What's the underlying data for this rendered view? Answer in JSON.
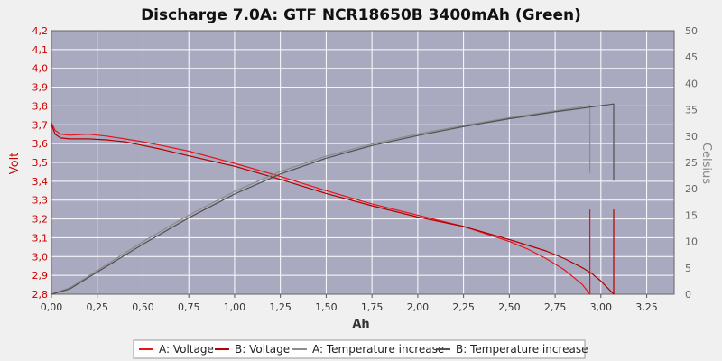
{
  "chart_data": {
    "type": "line",
    "title": "Discharge 7.0A: GTF NCR18650B 3400mAh (Green)",
    "xlabel": "Ah",
    "ylabel_left": "Volt",
    "ylabel_right": "Celsius",
    "xlim": [
      0,
      3.4
    ],
    "ylim_left": [
      2.8,
      4.2
    ],
    "ylim_right": [
      0,
      50
    ],
    "x_ticks": [
      "0,00",
      "0,25",
      "0,50",
      "0,75",
      "1,00",
      "1,25",
      "1,50",
      "1,75",
      "2,00",
      "2,25",
      "2,50",
      "2,75",
      "3,00",
      "3,25"
    ],
    "y_left_ticks": [
      "2,8",
      "2,9",
      "3,0",
      "3,1",
      "3,2",
      "3,3",
      "3,4",
      "3,5",
      "3,6",
      "3,7",
      "3,8",
      "3,9",
      "4,0",
      "4,1",
      "4,2"
    ],
    "y_right_ticks": [
      "0",
      "5",
      "10",
      "15",
      "20",
      "25",
      "30",
      "35",
      "40",
      "45",
      "50"
    ],
    "grid": true,
    "legend_position": "bottom",
    "colors": {
      "plot_bg": "#a9a9c0",
      "grid": "#ffffff",
      "voltage_a": "#e8141a",
      "voltage_b": "#b40000",
      "temp_a": "#8c8c8c",
      "temp_b": "#505050"
    },
    "series": [
      {
        "name": "A: Voltage",
        "axis": "left",
        "x": [
          0,
          0.02,
          0.05,
          0.1,
          0.2,
          0.3,
          0.4,
          0.5,
          0.6,
          0.75,
          1.0,
          1.25,
          1.5,
          1.75,
          2.0,
          2.25,
          2.5,
          2.6,
          2.7,
          2.8,
          2.85,
          2.9,
          2.94,
          2.94
        ],
        "y": [
          3.71,
          3.67,
          3.65,
          3.645,
          3.65,
          3.64,
          3.625,
          3.61,
          3.59,
          3.56,
          3.495,
          3.425,
          3.35,
          3.28,
          3.22,
          3.16,
          3.08,
          3.04,
          2.99,
          2.93,
          2.89,
          2.85,
          2.8,
          3.25
        ]
      },
      {
        "name": "B: Voltage",
        "axis": "left",
        "x": [
          0,
          0.02,
          0.05,
          0.1,
          0.2,
          0.3,
          0.4,
          0.5,
          0.6,
          0.75,
          1.0,
          1.25,
          1.5,
          1.75,
          2.0,
          2.25,
          2.5,
          2.7,
          2.8,
          2.9,
          2.95,
          3.0,
          3.04,
          3.07,
          3.07
        ],
        "y": [
          3.7,
          3.65,
          3.63,
          3.625,
          3.625,
          3.62,
          3.61,
          3.59,
          3.57,
          3.535,
          3.48,
          3.41,
          3.335,
          3.27,
          3.21,
          3.16,
          3.09,
          3.03,
          2.99,
          2.94,
          2.91,
          2.87,
          2.83,
          2.8,
          3.25
        ]
      },
      {
        "name": "A: Temperature increase",
        "axis": "right",
        "x": [
          0,
          0.1,
          0.25,
          0.5,
          0.75,
          1.0,
          1.25,
          1.5,
          1.75,
          2.0,
          2.25,
          2.5,
          2.75,
          2.94,
          2.94
        ],
        "y": [
          0,
          1.2,
          4.5,
          10.0,
          15.0,
          19.5,
          23.3,
          26.2,
          28.5,
          30.4,
          32.0,
          33.5,
          34.8,
          35.8,
          23.0
        ]
      },
      {
        "name": "B: Temperature increase",
        "axis": "right",
        "x": [
          0,
          0.1,
          0.25,
          0.5,
          0.75,
          1.0,
          1.25,
          1.5,
          1.75,
          2.0,
          2.25,
          2.5,
          2.75,
          3.07,
          3.07
        ],
        "y": [
          0,
          1.0,
          4.2,
          9.5,
          14.5,
          19.0,
          22.8,
          25.8,
          28.2,
          30.1,
          31.8,
          33.3,
          34.6,
          36.1,
          21.5
        ]
      }
    ]
  }
}
